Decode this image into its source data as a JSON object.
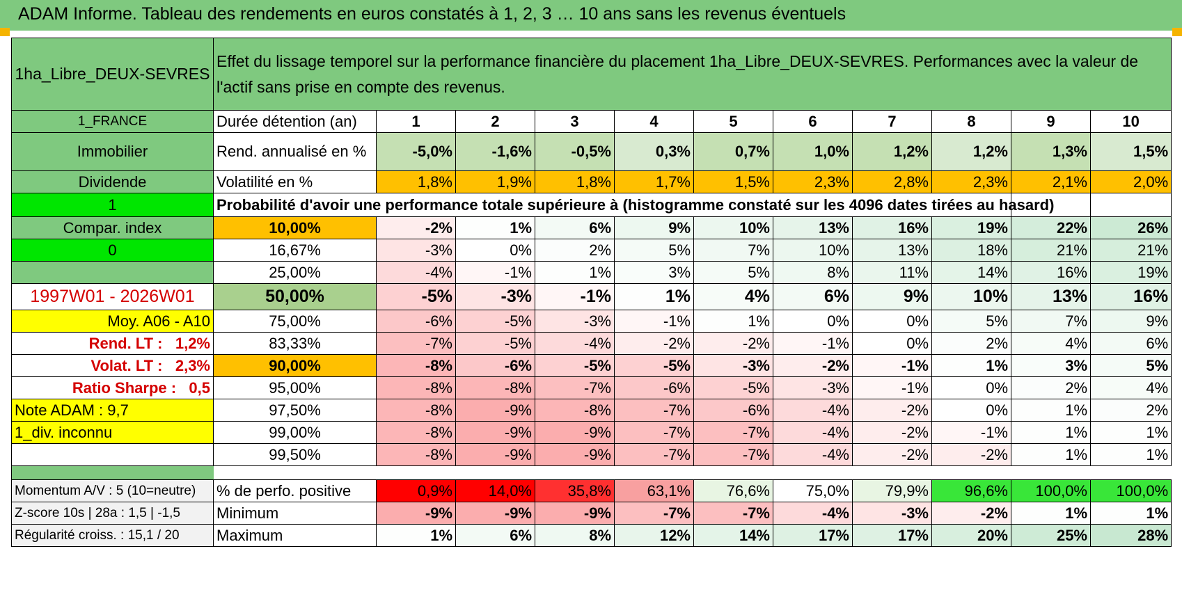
{
  "title": "ADAM Informe. Tableau des rendements en euros constatés à 1, 2, 3 … 10 ans sans les revenus éventuels",
  "header": {
    "product": "1ha_Libre_DEUX-SEVRES",
    "description_line1": "Effet du lissage temporel sur la performance financière du placement 1ha_Libre_DEUX-SEVRES. Performances avec la valeur de",
    "description_line2": "l'actif sans prise en compte des revenus."
  },
  "left_labels": {
    "country": "1_FRANCE",
    "category": "Immobilier",
    "type": "Dividende",
    "flag1": "1",
    "compar": "Compar. index",
    "flag0": "0",
    "period": "1997W01 - 2026W01",
    "moy": "Moy. A06 - A10",
    "rend_lt_label": "Rend. LT :",
    "rend_lt_value": "1,2%",
    "volat_lt_label": "Volat. LT :",
    "volat_lt_value": "2,3%",
    "sharpe_label": "Ratio Sharpe :",
    "sharpe_value": "0,5",
    "note": "Note ADAM : 9,7",
    "div": "1_div. inconnu",
    "momentum": "Momentum A/V : 5 (10=neutre)",
    "zscore": "Z-score 10s | 28a : 1,5 | -1,5",
    "regularite": "Régularité croiss. : 15,1 / 20"
  },
  "duration": {
    "label": "Durée détention (an)",
    "years": [
      "1",
      "2",
      "3",
      "4",
      "5",
      "6",
      "7",
      "8",
      "9",
      "10"
    ]
  },
  "rend": {
    "label": "Rend. annualisé en %",
    "values": [
      "-5,0%",
      "-1,6%",
      "-0,5%",
      "0,3%",
      "0,7%",
      "1,0%",
      "1,2%",
      "1,2%",
      "1,3%",
      "1,5%"
    ]
  },
  "vol": {
    "label": "Volatilité en %",
    "values": [
      "1,8%",
      "1,9%",
      "1,8%",
      "1,7%",
      "1,5%",
      "2,3%",
      "2,8%",
      "2,3%",
      "2,1%",
      "2,0%"
    ]
  },
  "prob_heading": "Probabilité d'avoir une performance totale supérieure à (histogramme constaté sur les 4096 dates tirées au hasard)",
  "prob_rows": [
    {
      "p": "10,00%",
      "values": [
        "-2%",
        "1%",
        "6%",
        "9%",
        "10%",
        "13%",
        "16%",
        "19%",
        "22%",
        "26%"
      ]
    },
    {
      "p": "16,67%",
      "values": [
        "-3%",
        "0%",
        "2%",
        "5%",
        "7%",
        "10%",
        "13%",
        "18%",
        "21%",
        "21%"
      ]
    },
    {
      "p": "25,00%",
      "values": [
        "-4%",
        "-1%",
        "1%",
        "3%",
        "5%",
        "8%",
        "11%",
        "14%",
        "16%",
        "19%"
      ]
    },
    {
      "p": "50,00%",
      "values": [
        "-5%",
        "-3%",
        "-1%",
        "1%",
        "4%",
        "6%",
        "9%",
        "10%",
        "13%",
        "16%"
      ]
    },
    {
      "p": "75,00%",
      "values": [
        "-6%",
        "-5%",
        "-3%",
        "-1%",
        "1%",
        "0%",
        "0%",
        "5%",
        "7%",
        "9%"
      ]
    },
    {
      "p": "83,33%",
      "values": [
        "-7%",
        "-5%",
        "-4%",
        "-2%",
        "-2%",
        "-1%",
        "0%",
        "2%",
        "4%",
        "6%"
      ]
    },
    {
      "p": "90,00%",
      "values": [
        "-8%",
        "-6%",
        "-5%",
        "-5%",
        "-3%",
        "-2%",
        "-1%",
        "1%",
        "3%",
        "5%"
      ]
    },
    {
      "p": "95,00%",
      "values": [
        "-8%",
        "-8%",
        "-7%",
        "-6%",
        "-5%",
        "-3%",
        "-1%",
        "0%",
        "2%",
        "4%"
      ]
    },
    {
      "p": "97,50%",
      "values": [
        "-8%",
        "-9%",
        "-8%",
        "-7%",
        "-6%",
        "-4%",
        "-2%",
        "0%",
        "1%",
        "2%"
      ]
    },
    {
      "p": "99,00%",
      "values": [
        "-8%",
        "-9%",
        "-9%",
        "-7%",
        "-7%",
        "-4%",
        "-2%",
        "-1%",
        "1%",
        "1%"
      ]
    },
    {
      "p": "99,50%",
      "values": [
        "-8%",
        "-9%",
        "-9%",
        "-7%",
        "-7%",
        "-4%",
        "-2%",
        "-2%",
        "1%",
        "1%"
      ]
    }
  ],
  "pos": {
    "label": "% de perfo. positive",
    "values": [
      "0,9%",
      "14,0%",
      "35,8%",
      "63,1%",
      "76,6%",
      "75,0%",
      "79,9%",
      "96,6%",
      "100,0%",
      "100,0%"
    ]
  },
  "min": {
    "label": "Minimum",
    "values": [
      "-9%",
      "-9%",
      "-9%",
      "-7%",
      "-7%",
      "-4%",
      "-3%",
      "-2%",
      "1%",
      "1%"
    ]
  },
  "max": {
    "label": "Maximum",
    "values": [
      "1%",
      "6%",
      "8%",
      "12%",
      "14%",
      "17%",
      "17%",
      "20%",
      "25%",
      "28%"
    ]
  },
  "colors": {
    "header_green": "#7fc97f",
    "bright_green": "#00e600",
    "yellow": "#ffff00",
    "orange": "#ffc000",
    "label_red": "#d40000",
    "light_green": "#c5e0b3",
    "median_green": "#a9d08e"
  }
}
